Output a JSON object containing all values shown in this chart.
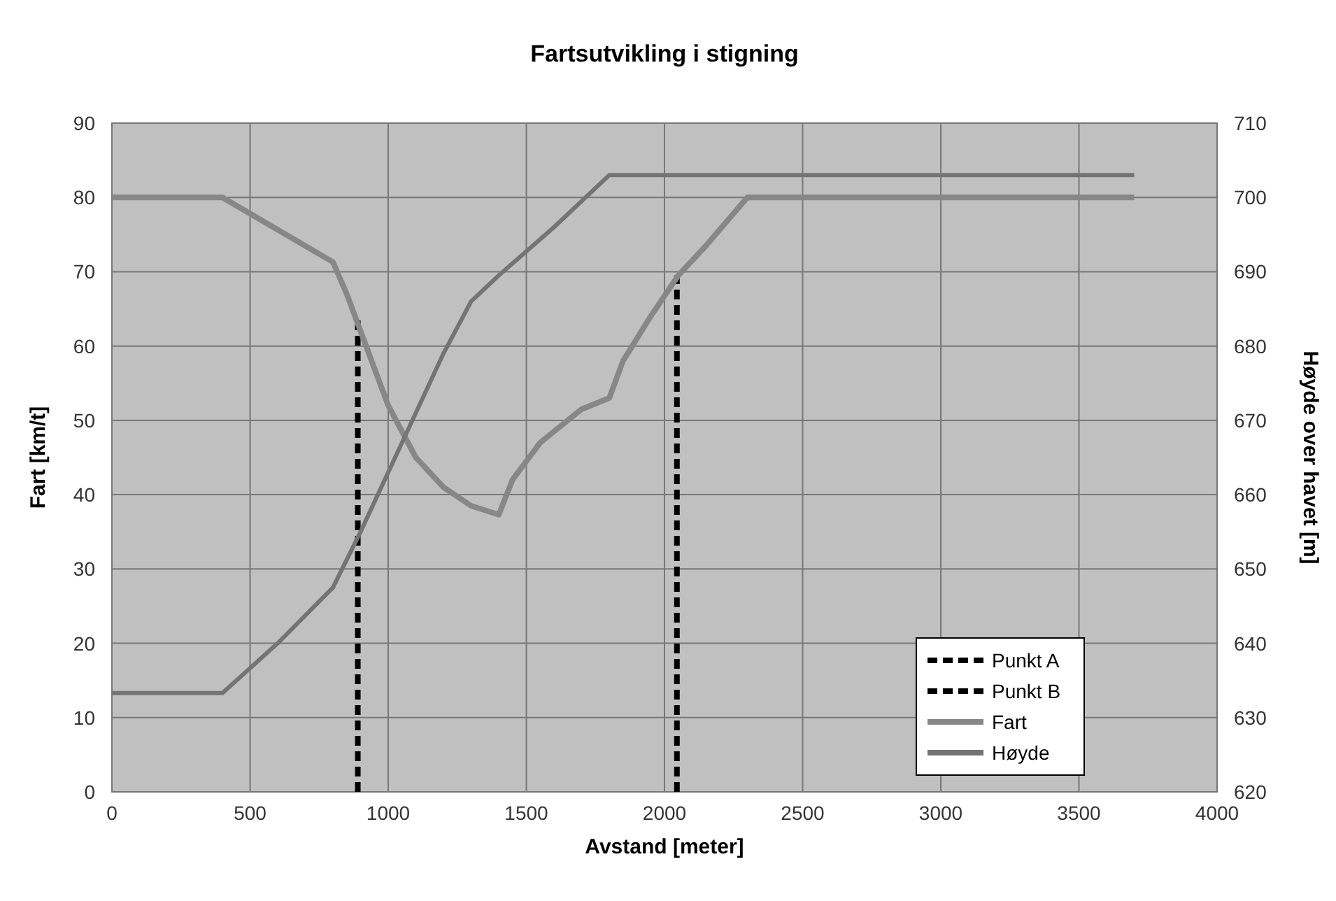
{
  "chart_data": {
    "type": "line",
    "title": "Fartsutvikling i stigning",
    "xlabel": "Avstand [meter]",
    "ylabel": "Fart [km/t]",
    "y2label": "Høyde over havet [m]",
    "xlim": [
      0,
      4000
    ],
    "xticks": [
      0,
      500,
      1000,
      1500,
      2000,
      2500,
      3000,
      3500,
      4000
    ],
    "ylim": [
      0,
      90
    ],
    "yticks": [
      0,
      10,
      20,
      30,
      40,
      50,
      60,
      70,
      80,
      90
    ],
    "y2lim": [
      620,
      710
    ],
    "y2ticks": [
      620,
      630,
      640,
      650,
      660,
      670,
      680,
      690,
      700,
      710
    ],
    "grid": true,
    "legend": "bottom right",
    "series": [
      {
        "name": "Punkt A",
        "color": "#000000",
        "line_style": "dashed",
        "x": [
          890,
          890
        ],
        "values": [
          0,
          63.5
        ]
      },
      {
        "name": "Punkt B",
        "color": "#000000",
        "line_style": "dashed",
        "x": [
          2045,
          2045
        ],
        "values": [
          0,
          69.5
        ]
      },
      {
        "name": "Fart",
        "color": "#878787",
        "line_style": "solid",
        "x": [
          0,
          400,
          800,
          850,
          950,
          1000,
          1100,
          1200,
          1300,
          1400,
          1450,
          1550,
          1700,
          1800,
          1850,
          1950,
          2050,
          2150,
          2300,
          3700
        ],
        "values": [
          80,
          80,
          71.3,
          67,
          57,
          52,
          45,
          41,
          38.5,
          37.3,
          42,
          47,
          51.5,
          53,
          58,
          64,
          69.5,
          73.5,
          80,
          80
        ]
      },
      {
        "name": "Høyde",
        "color": "#747474",
        "line_style": "solid",
        "axis": "y2",
        "x": [
          0,
          400,
          600,
          800,
          900,
          1000,
          1100,
          1200,
          1300,
          1400,
          1600,
          1800,
          3700
        ],
        "values": [
          633.3,
          633.3,
          640,
          647.5,
          655,
          663,
          671,
          679,
          686,
          689.5,
          696,
          703,
          703
        ]
      }
    ]
  }
}
